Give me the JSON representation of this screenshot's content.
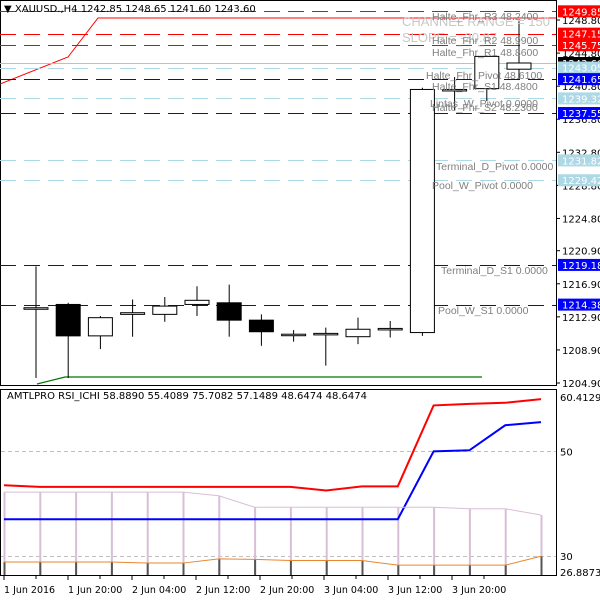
{
  "main_chart": {
    "symbol_header": "XAUUSD.,H4",
    "ohlc": [
      "1242.85",
      "1248.65",
      "1241.60",
      "1243.60"
    ],
    "collapse_icon": "triangle-down-icon",
    "watermark_lines": [
      "CHANNEL RANGE = 150",
      "SLOPE = -20.87"
    ],
    "price_axis_ticks": [
      "1248.80",
      "1244.80",
      "1240.80",
      "1236.80",
      "1232.80",
      "1228.80",
      "1224.80",
      "1220.90",
      "1216.90",
      "1212.90",
      "1208.90",
      "1204.90"
    ],
    "price_tags": [
      {
        "value": "1249.85",
        "bg": "#ff0000",
        "fg": "#ffffff"
      },
      {
        "value": "1247.15",
        "bg": "#ff0000",
        "fg": "#ffffff"
      },
      {
        "value": "1245.75",
        "bg": "#ff0000",
        "fg": "#ffffff"
      },
      {
        "value": "1243.60",
        "bg": "#000000",
        "fg": "#ffffff"
      },
      {
        "value": "1243.05",
        "bg": "#add8e6",
        "fg": "#ffffff"
      },
      {
        "value": "1241.65",
        "bg": "#0000ff",
        "fg": "#ffffff"
      },
      {
        "value": "1239.32",
        "bg": "#add8e6",
        "fg": "#ffffff"
      },
      {
        "value": "1237.55",
        "bg": "#0000ff",
        "fg": "#ffffff"
      },
      {
        "value": "1231.82",
        "bg": "#add8e6",
        "fg": "#ffffff"
      },
      {
        "value": "1229.42",
        "bg": "#add8e6",
        "fg": "#ffffff"
      },
      {
        "value": "1219.18",
        "bg": "#0000ff",
        "fg": "#ffffff"
      },
      {
        "value": "1214.38",
        "bg": "#0000ff",
        "fg": "#ffffff"
      }
    ],
    "level_labels": [
      "Halte_Fhr_R3 48.2400",
      "Halte_Fhr_R2 48.9900",
      "Halte_Fhr_R1 48.8600",
      "Halte_Fhr_Pivot 48.6100",
      "Halte_Fhr_S1 48.4800",
      "Lintas_W_Pivot 0.0000",
      "Halte_Fhr_S2 48.2300",
      "Terminal_D_Pivot 0.0000",
      "Pool_W_Pivot 0.0000",
      "Terminal_D_S1 0.0000",
      "Pool_W_S1 0.0000"
    ]
  },
  "indicator": {
    "header": "AMTLPRO RSI_ICHI 58.8890 55.4089 75.7082 57.1489 48.6474 48.6474",
    "axis_ticks": [
      "60.4129",
      "50",
      "30",
      "26.8873"
    ]
  },
  "time_axis": [
    "1 Jun 2016",
    "1 Jun 20:00",
    "2 Jun 04:00",
    "2 Jun 12:00",
    "2 Jun 20:00",
    "3 Jun 04:00",
    "3 Jun 12:00",
    "3 Jun 20:00"
  ],
  "colors": {
    "red": "#ff0000",
    "blue": "#0000ff",
    "lightblue": "#add8e6",
    "green": "#007700",
    "orange": "#e8862f",
    "lilac": "#d8bfd8",
    "grid": "#c0c0c0"
  },
  "chart_data": [
    {
      "type": "candlestick",
      "title": "XAUUSD.,H4",
      "ohlc_last": {
        "open": 1242.85,
        "high": 1248.65,
        "low": 1241.6,
        "close": 1243.6
      },
      "ylim": [
        1204.9,
        1251.0
      ],
      "candles": [
        {
          "o": 1214.0,
          "h": 1219.0,
          "l": 1205.5,
          "c": 1214.0
        },
        {
          "o": 1214.4,
          "h": 1214.6,
          "l": 1205.5,
          "c": 1210.6
        },
        {
          "o": 1210.6,
          "h": 1213.0,
          "l": 1209.0,
          "c": 1212.8
        },
        {
          "o": 1213.2,
          "h": 1215.0,
          "l": 1210.5,
          "c": 1213.4
        },
        {
          "o": 1213.2,
          "h": 1215.3,
          "l": 1212.3,
          "c": 1214.2
        },
        {
          "o": 1214.4,
          "h": 1216.6,
          "l": 1213.0,
          "c": 1214.9
        },
        {
          "o": 1214.6,
          "h": 1216.8,
          "l": 1210.5,
          "c": 1212.5
        },
        {
          "o": 1212.5,
          "h": 1213.2,
          "l": 1209.4,
          "c": 1211.1
        },
        {
          "o": 1210.8,
          "h": 1211.3,
          "l": 1209.9,
          "c": 1210.8
        },
        {
          "o": 1210.9,
          "h": 1211.6,
          "l": 1207.0,
          "c": 1210.9
        },
        {
          "o": 1210.5,
          "h": 1212.8,
          "l": 1209.6,
          "c": 1211.4
        },
        {
          "o": 1211.4,
          "h": 1212.4,
          "l": 1210.4,
          "c": 1211.5
        },
        {
          "o": 1211.0,
          "h": 1240.6,
          "l": 1210.6,
          "c": 1240.4
        },
        {
          "o": 1240.3,
          "h": 1241.9,
          "l": 1237.9,
          "c": 1240.4
        },
        {
          "o": 1240.5,
          "h": 1244.5,
          "l": 1239.0,
          "c": 1244.4
        },
        {
          "o": 1242.85,
          "h": 1248.65,
          "l": 1241.6,
          "c": 1243.6
        }
      ],
      "horizontal_levels": [
        {
          "price": 1249.85,
          "color": "#ff0000",
          "style": "dashed"
        },
        {
          "price": 1247.15,
          "color": "#ff0000",
          "style": "dashed"
        },
        {
          "price": 1245.75,
          "color": "#ff0000",
          "style": "dashed"
        },
        {
          "price": 1243.6,
          "color": "#c0c0c0",
          "style": "solid"
        },
        {
          "price": 1243.05,
          "color": "#add8e6",
          "style": "dashed"
        },
        {
          "price": 1241.65,
          "color": "#0000ff",
          "style": "dashed"
        },
        {
          "price": 1239.32,
          "color": "#add8e6",
          "style": "dashed"
        },
        {
          "price": 1237.55,
          "color": "#0000ff",
          "style": "dashed"
        },
        {
          "price": 1231.82,
          "color": "#add8e6",
          "style": "dashed"
        },
        {
          "price": 1229.42,
          "color": "#add8e6",
          "style": "dashed"
        },
        {
          "price": 1219.18,
          "color": "#0000ff",
          "style": "dashed"
        },
        {
          "price": 1214.38,
          "color": "#0000ff",
          "style": "dashed"
        }
      ]
    },
    {
      "type": "line",
      "title": "AMTLPRO RSI_ICHI",
      "ylim": [
        26.8873,
        60.4129
      ],
      "reference_lines": [
        50,
        30
      ],
      "series": [
        {
          "name": "red",
          "color": "#ff0000",
          "values": [
            43.5,
            43.2,
            43.2,
            43.2,
            43.2,
            43.2,
            43.2,
            43.2,
            43.2,
            42.5,
            43.3,
            43.3,
            58.8,
            59.1,
            59.3,
            60.0
          ]
        },
        {
          "name": "blue",
          "color": "#0000ff",
          "values": [
            37.0,
            37.0,
            37.0,
            37.0,
            37.0,
            37.0,
            37.0,
            37.0,
            37.0,
            37.0,
            37.0,
            37.0,
            50.0,
            50.2,
            55.0,
            55.6
          ]
        },
        {
          "name": "lilac",
          "color": "#d8bfd8",
          "values": [
            42.2,
            42.2,
            42.2,
            42.2,
            42.2,
            42.2,
            41.5,
            39.3,
            39.3,
            39.3,
            39.3,
            39.3,
            39.3,
            39.0,
            39.0,
            37.8
          ]
        },
        {
          "name": "orange",
          "color": "#e8862f",
          "values": [
            28.8,
            28.8,
            28.8,
            28.8,
            28.6,
            28.6,
            29.4,
            29.3,
            29.1,
            29.1,
            29.1,
            28.2,
            28.2,
            28.2,
            28.2,
            29.9
          ]
        }
      ],
      "x_tick_labels": [
        "1 Jun 2016",
        "1 Jun 20:00",
        "2 Jun 04:00",
        "2 Jun 12:00",
        "2 Jun 20:00",
        "3 Jun 04:00",
        "3 Jun 12:00",
        "3 Jun 20:00"
      ]
    }
  ]
}
